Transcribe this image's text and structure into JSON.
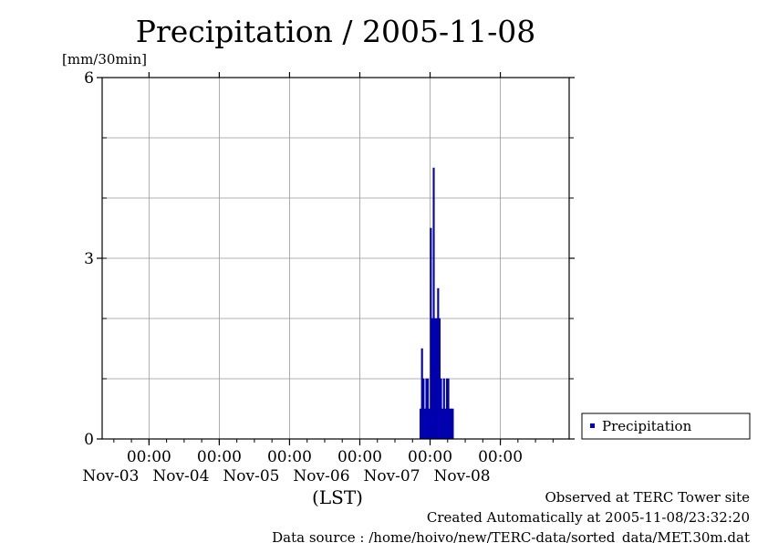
{
  "chart_data": {
    "type": "bar",
    "title": "Precipitation / 2005-11-08",
    "ylabel": "[mm/30min]",
    "xlabel": "(LST)",
    "ylim": [
      0,
      6
    ],
    "yticks": [
      "0",
      "3",
      "6"
    ],
    "xlim": [
      "2005-11-02T08:00",
      "2005-11-08T23:30"
    ],
    "xticks": [
      {
        "time": "00:00",
        "date": "Nov-03"
      },
      {
        "time": "00:00",
        "date": "Nov-04"
      },
      {
        "time": "00:00",
        "date": "Nov-05"
      },
      {
        "time": "00:00",
        "date": "Nov-06"
      },
      {
        "time": "00:00",
        "date": "Nov-07"
      },
      {
        "time": "00:00",
        "date": "Nov-08"
      }
    ],
    "grid": true,
    "legend_position": "right",
    "series": [
      {
        "name": "Precipitation",
        "color": "#0000cc",
        "x": [
          "2005-11-06T20:30",
          "2005-11-06T21:00",
          "2005-11-06T21:30",
          "2005-11-06T22:00",
          "2005-11-06T22:30",
          "2005-11-06T23:00",
          "2005-11-06T23:30",
          "2005-11-07T00:00",
          "2005-11-07T00:30",
          "2005-11-07T01:00",
          "2005-11-07T01:30",
          "2005-11-07T02:00",
          "2005-11-07T02:30",
          "2005-11-07T03:00",
          "2005-11-07T03:30",
          "2005-11-07T04:00",
          "2005-11-07T04:30",
          "2005-11-07T05:00",
          "2005-11-07T05:30",
          "2005-11-07T06:00",
          "2005-11-07T06:30",
          "2005-11-07T07:00",
          "2005-11-07T07:30",
          "2005-11-07T08:00",
          "2005-11-07T08:30",
          "2005-11-07T09:00",
          "2005-11-07T09:30"
        ],
        "values": [
          0.5,
          1.5,
          1.0,
          0.5,
          1.0,
          1.0,
          0.5,
          3.5,
          2.0,
          4.5,
          2.0,
          2.0,
          2.5,
          2.0,
          1.0,
          0.5,
          1.0,
          0.5,
          1.0,
          1.0,
          0.5,
          0.5,
          0.5,
          0,
          0,
          0,
          0
        ]
      }
    ]
  },
  "legend": {
    "label": "Precipitation"
  },
  "footer": {
    "observed": "Observed at TERC Tower site",
    "created": "Created Automatically at 2005-11-08/23:32:20",
    "source": "Data source : /home/hoivo/new/TERC-data/sorted_data/MET.30m.dat"
  }
}
